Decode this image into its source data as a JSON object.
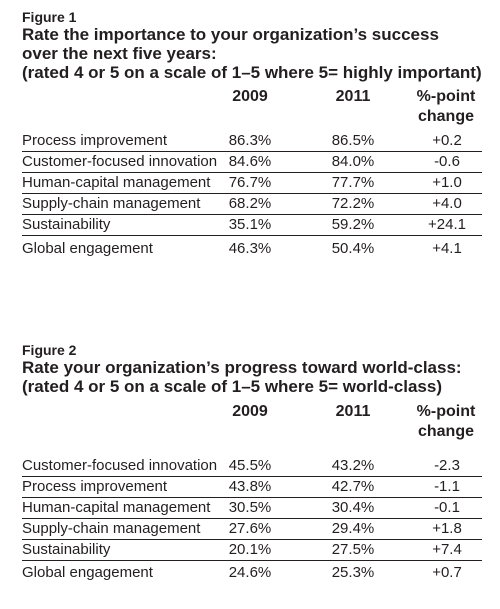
{
  "figure1": {
    "label": "Figure 1",
    "title_lines": [
      "Rate the importance to your organization’s success",
      "over the next five years:",
      "(rated 4 or 5 on a scale of 1–5 where 5= highly important)"
    ],
    "columns": {
      "y2009": "2009",
      "y2011": "2011",
      "change_line1": "%-point",
      "change_line2": "change"
    },
    "rows": [
      {
        "label": "Process improvement",
        "y2009": "86.3%",
        "y2011": "86.5%",
        "change": "+0.2"
      },
      {
        "label": "Customer-focused innovation",
        "y2009": "84.6%",
        "y2011": "84.0%",
        "change": "-0.6"
      },
      {
        "label": "Human-capital management",
        "y2009": "76.7%",
        "y2011": "77.7%",
        "change": "+1.0"
      },
      {
        "label": "Supply-chain management",
        "y2009": "68.2%",
        "y2011": "72.2%",
        "change": "+4.0"
      },
      {
        "label": "Sustainability",
        "y2009": "35.1%",
        "y2011": "59.2%",
        "change": "+24.1"
      },
      {
        "label": "Global engagement",
        "y2009": "46.3%",
        "y2011": "50.4%",
        "change": "+4.1"
      }
    ]
  },
  "figure2": {
    "label": "Figure 2",
    "title_lines": [
      "Rate your organization’s progress toward world-class:",
      "(rated 4 or 5 on a scale of 1–5 where 5= world-class)"
    ],
    "columns": {
      "y2009": "2009",
      "y2011": "2011",
      "change_line1": "%-point",
      "change_line2": "change"
    },
    "rows": [
      {
        "label": "Customer-focused innovation",
        "y2009": "45.5%",
        "y2011": "43.2%",
        "change": "-2.3"
      },
      {
        "label": "Process improvement",
        "y2009": "43.8%",
        "y2011": "42.7%",
        "change": "-1.1"
      },
      {
        "label": "Human-capital management",
        "y2009": "30.5%",
        "y2011": "30.4%",
        "change": "-0.1"
      },
      {
        "label": "Supply-chain management",
        "y2009": "27.6%",
        "y2011": "29.4%",
        "change": "+1.8"
      },
      {
        "label": "Sustainability",
        "y2009": "20.1%",
        "y2011": "27.5%",
        "change": "+7.4"
      },
      {
        "label": "Global engagement",
        "y2009": "24.6%",
        "y2011": "25.3%",
        "change": "+0.7"
      }
    ]
  }
}
